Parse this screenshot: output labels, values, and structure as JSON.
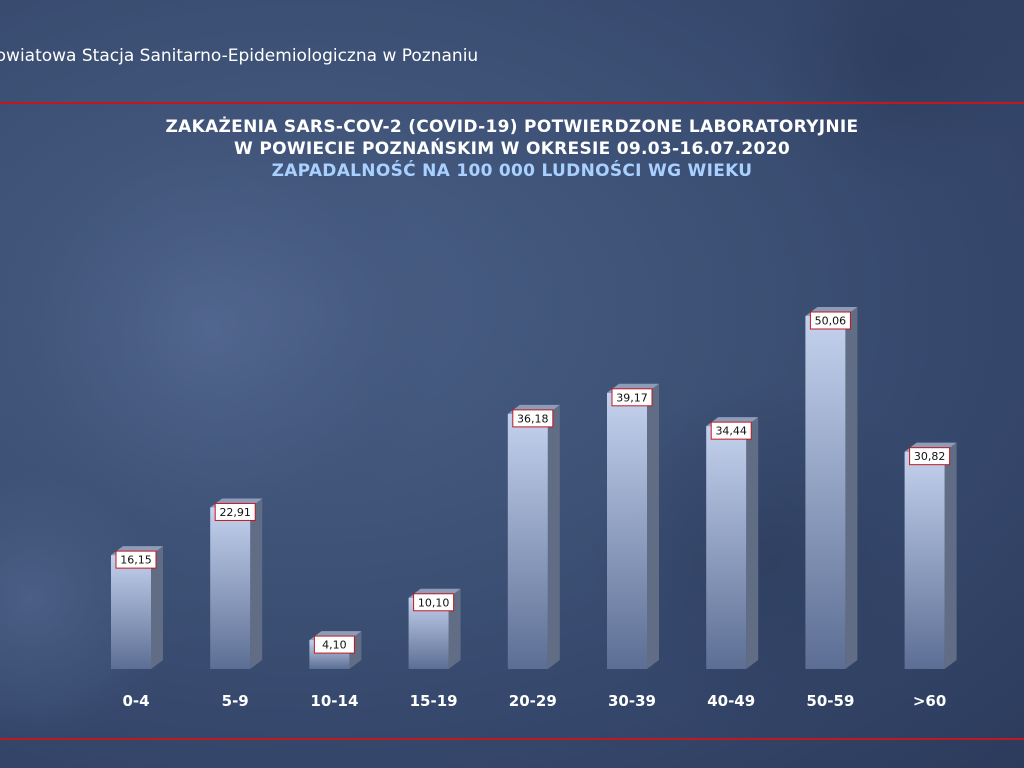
{
  "header": {
    "organization": "Powiatowa Stacja Sanitarno-Epidemiologiczna w Poznaniu"
  },
  "chart_data": {
    "type": "bar",
    "title": "ZAKAŻENIA SARS-COV-2 (COVID-19) POTWIERDZONE LABORATORYJNIE",
    "title_line2": "W POWIECIE POZNAŃSKIM W OKRESIE 09.03-16.07.2020",
    "subtitle": "ZAPADALNOŚĆ NA 100 000 LUDNOŚCI WG WIEKU",
    "categories": [
      "0-4",
      "5-9",
      "10-14",
      "15-19",
      "20-29",
      "30-39",
      "40-49",
      "50-59",
      ">60"
    ],
    "values": [
      16.15,
      22.91,
      4.1,
      10.1,
      36.18,
      39.17,
      34.44,
      50.06,
      30.82
    ],
    "value_labels": [
      "16,15",
      "22,91",
      "4,10",
      "10,10",
      "36,18",
      "39,17",
      "34,44",
      "50,06",
      "30,82"
    ],
    "xlabel": "",
    "ylabel": "",
    "ylim": [
      0,
      50.06
    ],
    "grid": false,
    "legend": "none",
    "colors": {
      "bar_front_top": "#c4d2ee",
      "bar_front_bottom": "#5c6e94",
      "bar_side": "#616d85",
      "bar_top": "#8e9cba",
      "label_border": "#c0181e",
      "rule": "#c0181e"
    }
  }
}
